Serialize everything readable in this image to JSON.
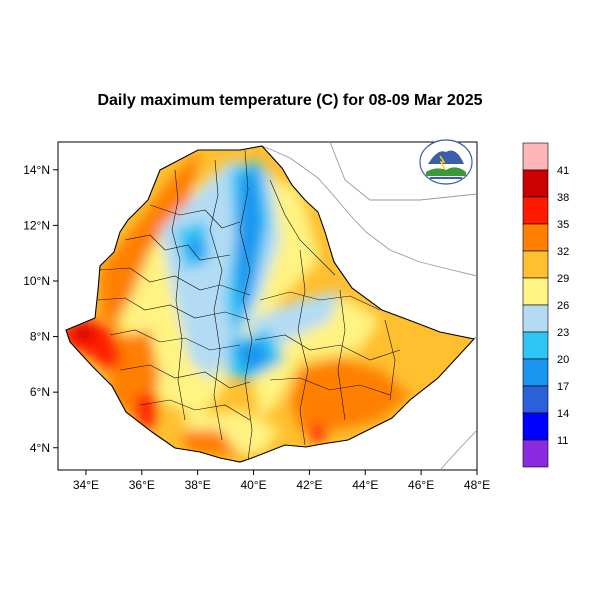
{
  "title": "Daily maximum temperature (C) for 08-09 Mar 2025",
  "axes": {
    "x_ticks": [
      "34°E",
      "36°E",
      "38°E",
      "40°E",
      "42°E",
      "44°E",
      "46°E",
      "48°E"
    ],
    "y_ticks": [
      "14°N",
      "12°N",
      "10°N",
      "8°N",
      "6°N",
      "4°N"
    ],
    "xlim": [
      33,
      48
    ],
    "ylim": [
      3.2,
      15
    ]
  },
  "colorbar": {
    "levels": [
      "41",
      "38",
      "35",
      "32",
      "29",
      "26",
      "23",
      "20",
      "17",
      "14",
      "11"
    ],
    "colors": [
      "#ffb6b9",
      "#cc0000",
      "#ff1a00",
      "#ff7f00",
      "#ffbf2f",
      "#fff382",
      "#b3dcf4",
      "#2ec5f5",
      "#1a96f0",
      "#2d5fdb",
      "#0000ff",
      "#8a2be2"
    ]
  },
  "logo": {
    "name": "ethiopian-meteorology-institute-logo"
  }
}
